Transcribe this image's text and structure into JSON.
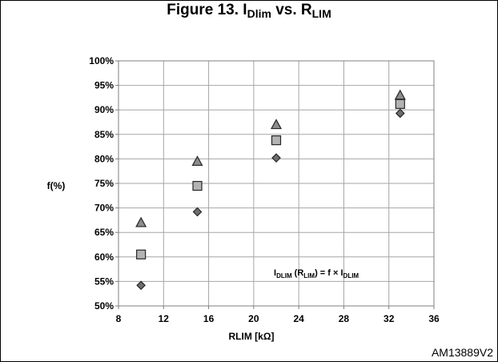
{
  "figure": {
    "title_prefix": "Figure 13. I",
    "title_sub1": "Dlim",
    "title_mid": " vs. R",
    "title_sub2": "LIM",
    "code": "AM13889V2"
  },
  "chart_data": {
    "type": "scatter",
    "title": "Figure 13. IDlim vs. RLIM",
    "xlabel": "RLIM [kΩ]",
    "ylabel": "f(%)",
    "xlim": [
      8,
      36
    ],
    "ylim": [
      50,
      100
    ],
    "x_ticks": [
      8,
      12,
      16,
      20,
      24,
      28,
      32,
      36
    ],
    "y_ticks": [
      50,
      55,
      60,
      65,
      70,
      75,
      80,
      85,
      90,
      95,
      100
    ],
    "y_tick_suffix": "%",
    "grid": true,
    "annotation": {
      "parts": [
        "I",
        "DLIM",
        " (R",
        "LIM",
        ") = f × I",
        "DLIM"
      ]
    },
    "series": [
      {
        "marker": "triangle",
        "color": "#8c8c8c",
        "x": [
          10,
          15,
          22,
          33
        ],
        "y": [
          67,
          79.5,
          87,
          93
        ]
      },
      {
        "marker": "square",
        "color": "#b3b3b3",
        "x": [
          10,
          15,
          22,
          33
        ],
        "y": [
          60.5,
          74.5,
          83.8,
          91.2
        ]
      },
      {
        "marker": "diamond",
        "color": "#6e6e6e",
        "x": [
          10,
          15,
          22,
          33
        ],
        "y": [
          54.2,
          69.2,
          80.2,
          89.3
        ]
      }
    ]
  }
}
